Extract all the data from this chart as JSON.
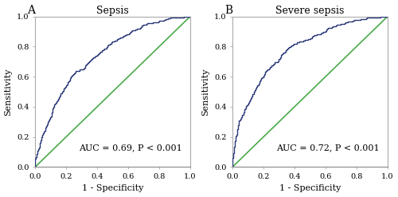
{
  "panel_A": {
    "title": "Sepsis",
    "label": "A",
    "auc_text": "AUC = 0.69, P < 0.001",
    "auc": 0.69,
    "seed": 42
  },
  "panel_B": {
    "title": "Severe sepsis",
    "label": "B",
    "auc_text": "AUC = 0.72, P < 0.001",
    "auc": 0.72,
    "seed": 7
  },
  "xlabel": "1 - Specificity",
  "ylabel": "Sensitivity",
  "xlim": [
    0.0,
    1.0
  ],
  "ylim": [
    0.0,
    1.0
  ],
  "xticks": [
    0.0,
    0.2,
    0.4,
    0.6,
    0.8,
    1.0
  ],
  "yticks": [
    0.0,
    0.2,
    0.4,
    0.6,
    0.8,
    1.0
  ],
  "roc_color": "#2b3a7a",
  "diag_color": "#4aaa4a",
  "roc_linewidth": 1.0,
  "diag_linewidth": 1.2,
  "title_fontsize": 9,
  "label_fontsize": 8,
  "tick_fontsize": 7,
  "annot_fontsize": 8,
  "background_color": "#ffffff",
  "spine_color": "#aaaaaa",
  "bottom_spine_color": "#888888"
}
